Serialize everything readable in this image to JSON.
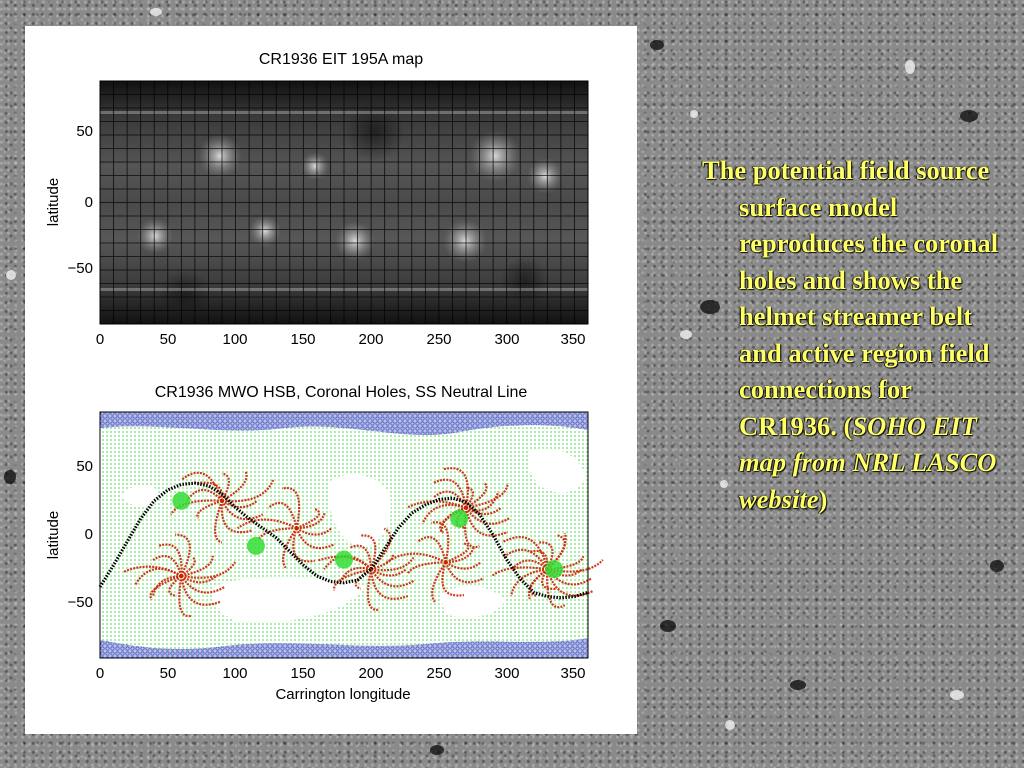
{
  "figure": {
    "top_plot": {
      "title": "CR1936 EIT 195A map",
      "ylabel": "latitude",
      "x_ticks": [
        "0",
        "50",
        "100",
        "150",
        "200",
        "250",
        "300",
        "350"
      ],
      "y_ticks": [
        "50",
        "0",
        "−50"
      ]
    },
    "bottom_plot": {
      "title": "CR1936 MWO HSB, Coronal Holes, SS Neutral Line",
      "ylabel": "latitude",
      "xlabel": "Carrington longitude",
      "x_ticks": [
        "0",
        "50",
        "100",
        "150",
        "200",
        "250",
        "300",
        "350"
      ],
      "y_ticks": [
        "50",
        "0",
        "−50"
      ]
    }
  },
  "chart_data": [
    {
      "type": "heatmap",
      "title": "CR1936 EIT 195A map",
      "xlabel": "",
      "ylabel": "latitude",
      "xlim": [
        0,
        360
      ],
      "ylim": [
        -90,
        90
      ],
      "x_ticks": [
        0,
        50,
        100,
        150,
        200,
        250,
        300,
        350
      ],
      "y_ticks": [
        50,
        0,
        -50
      ],
      "grid": true
    },
    {
      "type": "line",
      "title": "CR1936 MWO HSB, Coronal Holes, SS Neutral Line",
      "xlabel": "Carrington longitude",
      "ylabel": "latitude",
      "xlim": [
        0,
        360
      ],
      "ylim": [
        -90,
        90
      ],
      "x_ticks": [
        0,
        50,
        100,
        150,
        200,
        250,
        300,
        350
      ],
      "y_ticks": [
        50,
        0,
        -50
      ],
      "grid": false,
      "series": [
        {
          "x": [
            0,
            10,
            20,
            30,
            40,
            50,
            60,
            70,
            80,
            90,
            100,
            110,
            120,
            130,
            140,
            150,
            160,
            170,
            180,
            190,
            200,
            210,
            220,
            230,
            240,
            250,
            260,
            270,
            280,
            290,
            300,
            310,
            320,
            330,
            340,
            350,
            360
          ],
          "values": [
            -38,
            -22,
            -5,
            12,
            25,
            33,
            37,
            38,
            36,
            30,
            20,
            12,
            5,
            -2,
            -12,
            -22,
            -30,
            -34,
            -35,
            -33,
            -25,
            -10,
            5,
            16,
            22,
            26,
            27,
            24,
            15,
            0,
            -18,
            -32,
            -42,
            -45,
            -46,
            -45,
            -42
          ]
        }
      ],
      "colors": {
        "neutral_line": "#000000",
        "closed_field": "#cc2200",
        "open_field": "#33dd33",
        "polar_holes": "#6f7fd0"
      }
    }
  ],
  "caption": {
    "text": "The potential field source surface model reproduces the coronal holes and shows the helmet streamer belt and active region field connections for CR1936. (",
    "italic": "SOHO EIT map from NRL LASCO website",
    "close": ")"
  },
  "colors": {
    "caption": "#ffff66",
    "background": "#8a8a8a"
  }
}
